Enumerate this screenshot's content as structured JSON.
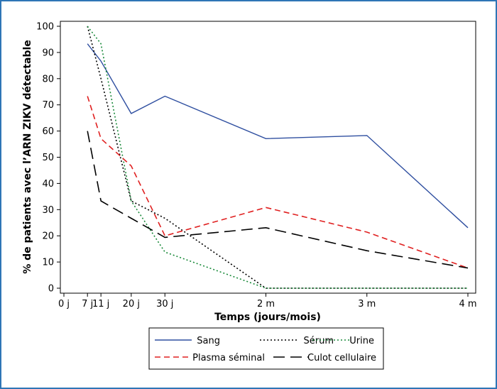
{
  "chart_data": {
    "type": "line",
    "title": "",
    "xlabel": "Temps (jours/mois)",
    "ylabel": "% de patients avec l’ARN ZIKV détectable",
    "ylim": [
      0,
      100
    ],
    "yticks": [
      0,
      10,
      20,
      30,
      40,
      50,
      60,
      70,
      80,
      90,
      100
    ],
    "xlim": [
      0,
      120
    ],
    "xticks": [
      {
        "x": 0,
        "label": "0 j"
      },
      {
        "x": 7,
        "label": "7 j"
      },
      {
        "x": 11,
        "label": "11 j"
      },
      {
        "x": 20,
        "label": "20 j"
      },
      {
        "x": 30,
        "label": "30 j"
      },
      {
        "x": 60,
        "label": "2 m"
      },
      {
        "x": 90,
        "label": "3 m"
      },
      {
        "x": 120,
        "label": "4 m"
      }
    ],
    "grid": false,
    "legend_position": "bottom",
    "series": [
      {
        "name": "Sang",
        "color": "#2f4fa0",
        "dash": "solid",
        "points": [
          [
            7,
            93.3
          ],
          [
            11,
            86.7
          ],
          [
            20,
            66.7
          ],
          [
            30,
            73.3
          ],
          [
            60,
            57.1
          ],
          [
            90,
            58.3
          ],
          [
            120,
            23.1
          ]
        ]
      },
      {
        "name": "Sérum",
        "color": "#000000",
        "dash": "dotted",
        "points": [
          [
            7,
            100
          ],
          [
            11,
            80
          ],
          [
            20,
            33.3
          ],
          [
            30,
            26.7
          ],
          [
            60,
            0
          ],
          [
            90,
            0
          ],
          [
            120,
            0
          ]
        ]
      },
      {
        "name": "Urine",
        "color": "#1a8a3a",
        "dash": "dotted",
        "points": [
          [
            7,
            100
          ],
          [
            11,
            93.3
          ],
          [
            20,
            33.3
          ],
          [
            30,
            13.8
          ],
          [
            60,
            0
          ],
          [
            90,
            0
          ],
          [
            120,
            0
          ]
        ]
      },
      {
        "name": "Plasma séminal",
        "color": "#e02020",
        "dash": "dashed",
        "points": [
          [
            7,
            73.3
          ],
          [
            11,
            57.1
          ],
          [
            20,
            46.7
          ],
          [
            30,
            20
          ],
          [
            60,
            30.8
          ],
          [
            90,
            21.4
          ],
          [
            120,
            7.7
          ]
        ]
      },
      {
        "name": "Culot cellulaire",
        "color": "#000000",
        "dash": "longdash",
        "points": [
          [
            7,
            60
          ],
          [
            11,
            33.3
          ],
          [
            20,
            26.7
          ],
          [
            30,
            19.4
          ],
          [
            60,
            23.1
          ],
          [
            90,
            14.3
          ],
          [
            120,
            7.7
          ]
        ]
      }
    ]
  }
}
